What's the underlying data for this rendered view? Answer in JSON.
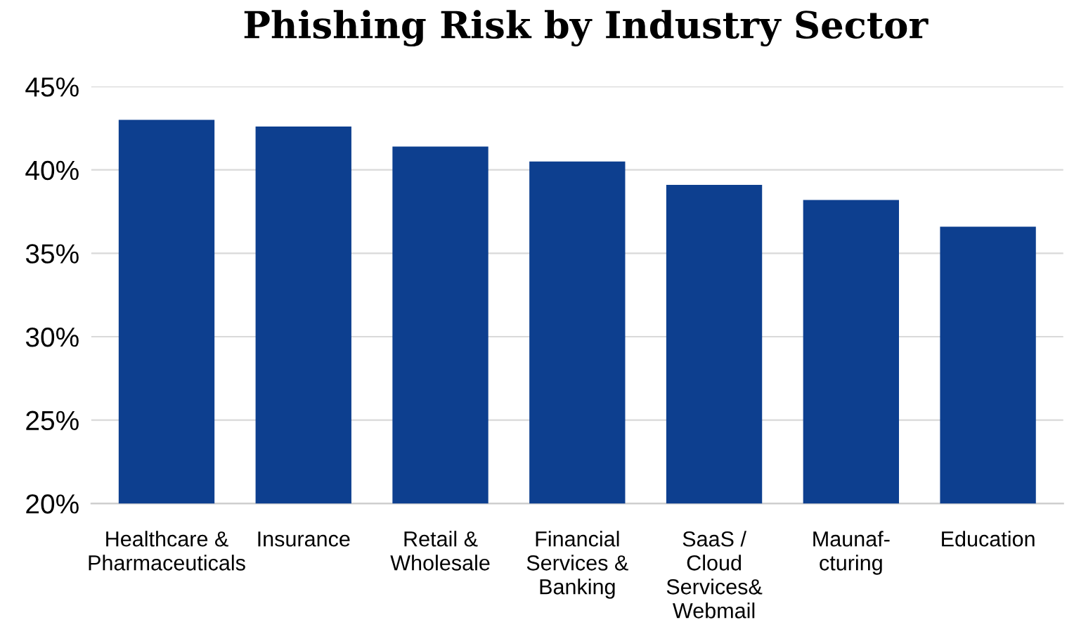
{
  "chart_data": {
    "type": "bar",
    "title": "Phishing Risk by Industry Sector",
    "categories": [
      "Healthcare &\nPharmaceuticals",
      "Insurance",
      "Retail &\nWholesale",
      "Financial\nServices &\nBanking",
      "SaaS /\nCloud\nServices&\nWebmail",
      "Maunaf-\ncturing",
      "Education"
    ],
    "values": [
      43.0,
      42.6,
      41.4,
      40.5,
      39.1,
      38.2,
      36.6
    ],
    "color": "#0d3f8f",
    "ylim": [
      20,
      45
    ],
    "yticks": [
      {
        "value": 20,
        "label": "20%"
      },
      {
        "value": 25,
        "label": "25%"
      },
      {
        "value": 30,
        "label": "30%"
      },
      {
        "value": 35,
        "label": "35%"
      },
      {
        "value": 40,
        "label": "40%"
      },
      {
        "value": 45,
        "label": "45%"
      }
    ],
    "grid": "y",
    "legend": false
  }
}
